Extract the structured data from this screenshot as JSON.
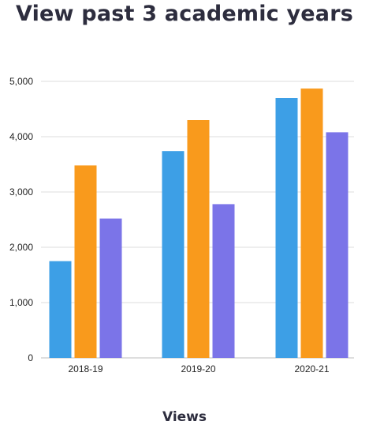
{
  "chart_data": {
    "type": "bar",
    "title": "View past 3 academic years",
    "xlabel": "Views",
    "ylabel": "",
    "categories": [
      "2018-19",
      "2019-20",
      "2020-21"
    ],
    "series": [
      {
        "values": [
          1750,
          3740,
          4700
        ],
        "color": "#3d9fe6"
      },
      {
        "values": [
          3480,
          4300,
          4870
        ],
        "color": "#f99a1c"
      },
      {
        "values": [
          2520,
          2780,
          4080
        ],
        "color": "#7b74e8"
      }
    ],
    "ylim": [
      0,
      5000
    ],
    "yticks": [
      "0",
      "1,000",
      "2,000",
      "3,000",
      "4,000",
      "5,000"
    ],
    "ytick_values": [
      0,
      1000,
      2000,
      3000,
      4000,
      5000
    ],
    "grid": true,
    "legend": "none"
  }
}
